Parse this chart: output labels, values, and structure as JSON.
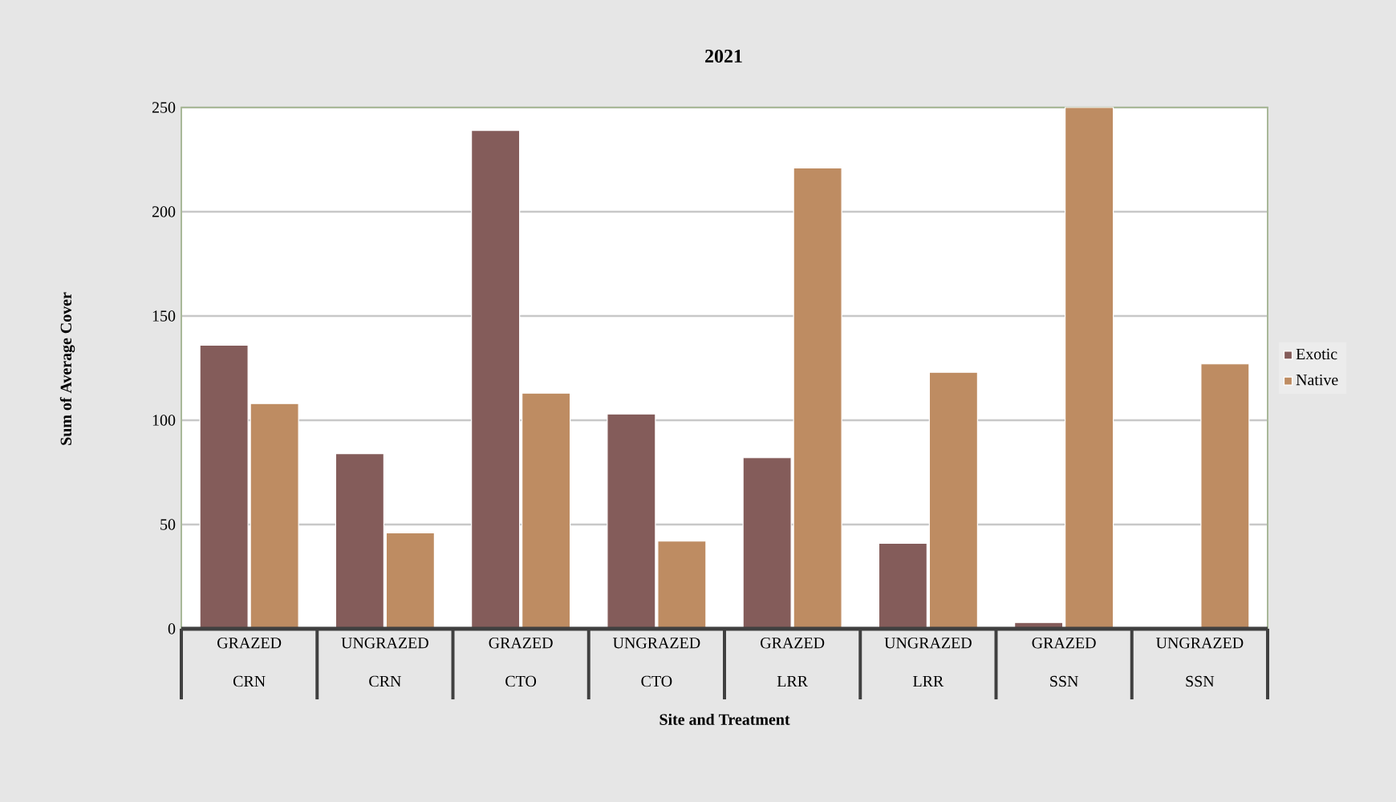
{
  "chart_data": {
    "type": "bar",
    "title": "2021",
    "xlabel": "Site and Treatment",
    "ylabel": "Sum of Average Cover",
    "categories": [
      "GRAZED CRN",
      "UNGRAZED CRN",
      "GRAZED CTO",
      "UNGRAZED CTO",
      "GRAZED LRR",
      "UNGRAZED LRR",
      "GRAZED SSN",
      "UNGRAZED SSN"
    ],
    "series": [
      {
        "name": "Exotic",
        "color": "#845c5a",
        "values": [
          136,
          84,
          239,
          103,
          82,
          41,
          3,
          1
        ]
      },
      {
        "name": "Native",
        "color": "#be8c62",
        "values": [
          108,
          46,
          113,
          42,
          221,
          123,
          250,
          127
        ]
      }
    ],
    "ylim": [
      0,
      250
    ],
    "yticks": [
      0,
      50,
      100,
      150,
      200,
      250
    ],
    "grid": "y",
    "legend": "right"
  }
}
